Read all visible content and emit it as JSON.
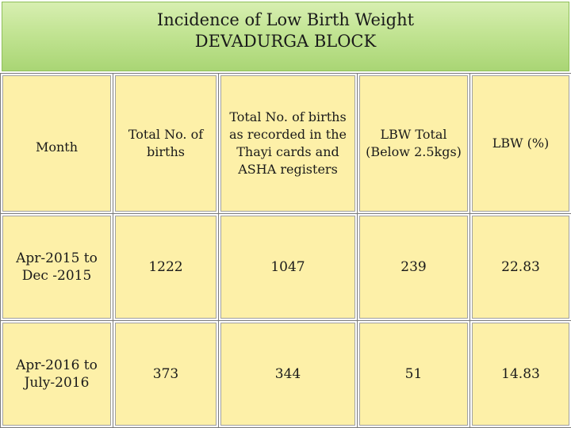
{
  "title": {
    "line1": "Incidence of Low Birth Weight",
    "line2": "DEVADURGA BLOCK"
  },
  "table": {
    "headers": [
      "Month",
      "Total No. of births",
      "Total No. of births as recorded in the Thayi cards and ASHA registers",
      "LBW Total (Below 2.5kgs)",
      "LBW (%)"
    ],
    "rows": [
      [
        "Apr-2015 to  Dec -2015",
        "1222",
        "1047",
        "239",
        "22.83"
      ],
      [
        "Apr-2016 to July-2016",
        "373",
        "344",
        "51",
        "14.83"
      ]
    ]
  },
  "colors": {
    "banner_green": "#c2e493",
    "cell_yellow": "#fdf0a8"
  }
}
